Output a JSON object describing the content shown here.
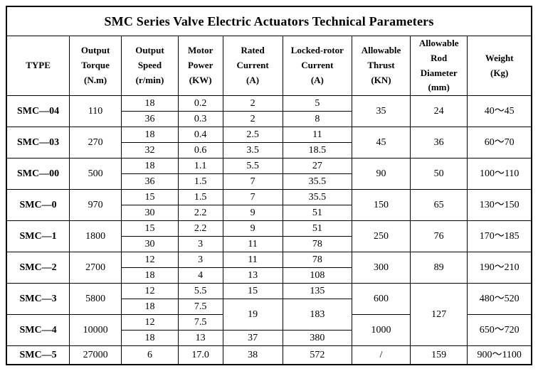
{
  "title": "SMC Series Valve Electric Actuators Technical Parameters",
  "table": {
    "columns": [
      {
        "name": "type",
        "lines": [
          "TYPE"
        ],
        "width": 12.0
      },
      {
        "name": "output-torque",
        "lines": [
          "Output",
          "Torque",
          "(N.m)"
        ],
        "width": 9.9
      },
      {
        "name": "output-speed",
        "lines": [
          "Output",
          "Speed",
          "(r/min)"
        ],
        "width": 10.8
      },
      {
        "name": "motor-power",
        "lines": [
          "Motor",
          "Power",
          "(KW)"
        ],
        "width": 8.5
      },
      {
        "name": "rated-current",
        "lines": [
          "Rated",
          "Current",
          "(A)"
        ],
        "width": 11.4
      },
      {
        "name": "locked-rotor-current",
        "lines": [
          "Locked-rotor",
          "Current",
          "(A)"
        ],
        "width": 13.2
      },
      {
        "name": "allowable-thrust",
        "lines": [
          "Allowable",
          "Thrust",
          "(KN)"
        ],
        "width": 11.1
      },
      {
        "name": "allowable-rod-diameter",
        "lines": [
          "Allowable",
          "Rod",
          "Diameter",
          "(mm)"
        ],
        "width": 10.9
      },
      {
        "name": "weight",
        "lines": [
          "Weight",
          "(Kg)"
        ],
        "width": 12.2
      }
    ],
    "rows": [
      [
        {
          "t": "SMC—04",
          "rs": 2,
          "cls": "type"
        },
        {
          "t": "110",
          "rs": 2
        },
        "18",
        "0.2",
        "2",
        "5",
        {
          "t": "35",
          "rs": 2
        },
        {
          "t": "24",
          "rs": 2
        },
        {
          "t": "40～45",
          "rs": 2
        }
      ],
      [
        "36",
        "0.3",
        "2",
        "8"
      ],
      [
        {
          "t": "SMC—03",
          "rs": 2,
          "cls": "type"
        },
        {
          "t": "270",
          "rs": 2
        },
        "18",
        "0.4",
        "2.5",
        "11",
        {
          "t": "45",
          "rs": 2
        },
        {
          "t": "36",
          "rs": 2
        },
        {
          "t": "60～70",
          "rs": 2
        }
      ],
      [
        "32",
        "0.6",
        "3.5",
        "18.5"
      ],
      [
        {
          "t": "SMC—00",
          "rs": 2,
          "cls": "type"
        },
        {
          "t": "500",
          "rs": 2
        },
        "18",
        "1.1",
        "5.5",
        "27",
        {
          "t": "90",
          "rs": 2
        },
        {
          "t": "50",
          "rs": 2
        },
        {
          "t": "100～110",
          "rs": 2
        }
      ],
      [
        "36",
        "1.5",
        "7",
        "35.5"
      ],
      [
        {
          "t": "SMC—0",
          "rs": 2,
          "cls": "type"
        },
        {
          "t": "970",
          "rs": 2
        },
        "15",
        "1.5",
        "7",
        "35.5",
        {
          "t": "150",
          "rs": 2
        },
        {
          "t": "65",
          "rs": 2
        },
        {
          "t": "130～150",
          "rs": 2
        }
      ],
      [
        "30",
        "2.2",
        "9",
        "51"
      ],
      [
        {
          "t": "SMC—1",
          "rs": 2,
          "cls": "type"
        },
        {
          "t": "1800",
          "rs": 2
        },
        "15",
        "2.2",
        "9",
        "51",
        {
          "t": "250",
          "rs": 2
        },
        {
          "t": "76",
          "rs": 2
        },
        {
          "t": "170～185",
          "rs": 2
        }
      ],
      [
        "30",
        "3",
        "11",
        "78"
      ],
      [
        {
          "t": "SMC—2",
          "rs": 2,
          "cls": "type"
        },
        {
          "t": "2700",
          "rs": 2
        },
        "12",
        "3",
        "11",
        "78",
        {
          "t": "300",
          "rs": 2
        },
        {
          "t": "89",
          "rs": 2
        },
        {
          "t": "190～210",
          "rs": 2
        }
      ],
      [
        "18",
        "4",
        "13",
        "108"
      ],
      [
        {
          "t": "SMC—3",
          "rs": 2,
          "cls": "type"
        },
        {
          "t": "5800",
          "rs": 2
        },
        "12",
        "5.5",
        "15",
        "135",
        {
          "t": "600",
          "rs": 2
        },
        {
          "t": "127",
          "rs": 4
        },
        {
          "t": "480～520",
          "rs": 2
        }
      ],
      [
        "18",
        "7.5",
        {
          "t": "19",
          "rs": 2
        },
        {
          "t": "183",
          "rs": 2
        }
      ],
      [
        {
          "t": "SMC—4",
          "rs": 2,
          "cls": "type"
        },
        {
          "t": "10000",
          "rs": 2
        },
        "12",
        "7.5",
        {
          "t": "1000",
          "rs": 2
        },
        {
          "t": "650～720",
          "rs": 2
        }
      ],
      [
        "18",
        "13",
        "37",
        "380"
      ],
      [
        {
          "t": "SMC—5",
          "cls": "type"
        },
        "27000",
        "6",
        "17.0",
        "38",
        "572",
        "/",
        "159",
        "900～1100"
      ]
    ]
  }
}
